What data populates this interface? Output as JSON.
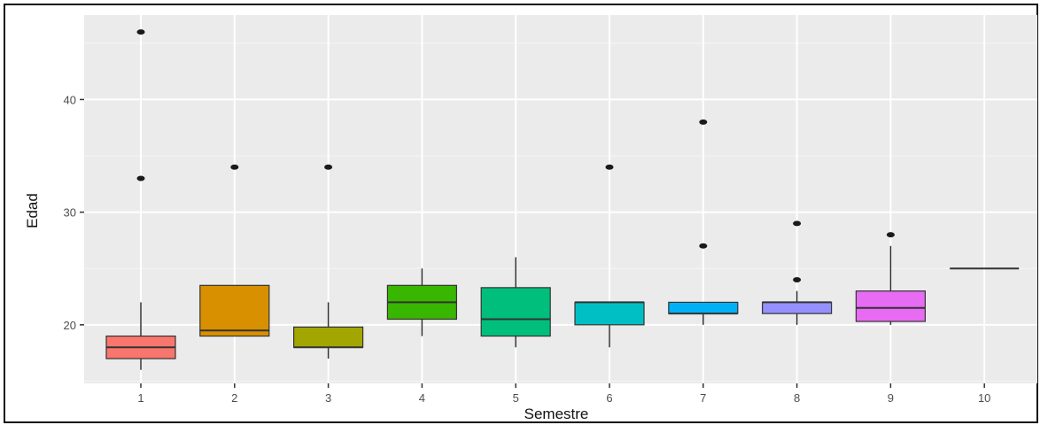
{
  "chart_data": {
    "type": "boxplot",
    "xlabel": "Semestre",
    "ylabel": "Edad",
    "ylim": [
      14.8,
      47.5
    ],
    "y_ticks": [
      20,
      30,
      40
    ],
    "grid": true,
    "legend": "none",
    "categories": [
      "1",
      "2",
      "3",
      "4",
      "5",
      "6",
      "7",
      "8",
      "9",
      "10"
    ],
    "boxes": [
      {
        "category": "1",
        "q1": 17.0,
        "median": 18.0,
        "q3": 19.0,
        "whisker_low": 16.0,
        "whisker_high": 22.0,
        "outliers": [
          33,
          46
        ],
        "color": "#F8766D"
      },
      {
        "category": "2",
        "q1": 19.0,
        "median": 19.5,
        "q3": 23.5,
        "whisker_low": 19.0,
        "whisker_high": 23.5,
        "outliers": [
          34
        ],
        "color": "#D89000"
      },
      {
        "category": "3",
        "q1": 18.0,
        "median": 18.0,
        "q3": 19.8,
        "whisker_low": 17.0,
        "whisker_high": 22.0,
        "outliers": [
          34
        ],
        "color": "#A3A500"
      },
      {
        "category": "4",
        "q1": 20.5,
        "median": 22.0,
        "q3": 23.5,
        "whisker_low": 19.0,
        "whisker_high": 25.0,
        "outliers": [],
        "color": "#39B600"
      },
      {
        "category": "5",
        "q1": 19.0,
        "median": 20.5,
        "q3": 23.3,
        "whisker_low": 18.0,
        "whisker_high": 26.0,
        "outliers": [],
        "color": "#00BF7D"
      },
      {
        "category": "6",
        "q1": 20.0,
        "median": 22.0,
        "q3": 22.0,
        "whisker_low": 18.0,
        "whisker_high": 22.0,
        "outliers": [
          34
        ],
        "color": "#00BFC4"
      },
      {
        "category": "7",
        "q1": 21.0,
        "median": 21.0,
        "q3": 22.0,
        "whisker_low": 20.0,
        "whisker_high": 22.0,
        "outliers": [
          27,
          38
        ],
        "color": "#00B0F6"
      },
      {
        "category": "8",
        "q1": 21.0,
        "median": 22.0,
        "q3": 22.0,
        "whisker_low": 20.0,
        "whisker_high": 23.0,
        "outliers": [
          24,
          29
        ],
        "color": "#9590FF"
      },
      {
        "category": "9",
        "q1": 20.3,
        "median": 21.5,
        "q3": 23.0,
        "whisker_low": 20.0,
        "whisker_high": 27.0,
        "outliers": [
          28
        ],
        "color": "#E76BF3"
      },
      {
        "category": "10",
        "q1": 25.0,
        "median": 25.0,
        "q3": 25.0,
        "whisker_low": 25.0,
        "whisker_high": 25.0,
        "outliers": [],
        "color": "#FF62BC"
      }
    ],
    "colors": {
      "panel_bg": "#EBEBEB",
      "grid": "#FFFFFF",
      "outline": "#333333"
    }
  }
}
